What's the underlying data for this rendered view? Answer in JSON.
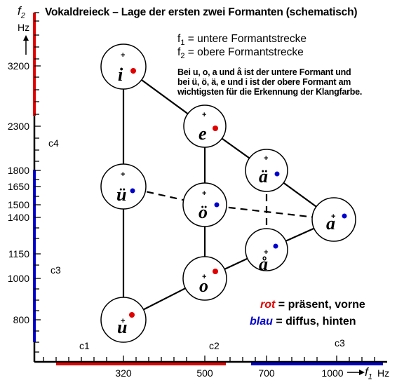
{
  "title": "Vokaldreieck – Lage der ersten zwei Formanten (schematisch)",
  "y_axis": {
    "symbol": "f",
    "subscript": "2",
    "unit": "Hz",
    "arrow": "↑",
    "ticks": [
      "3200",
      "2300",
      "1800",
      "1650",
      "1500",
      "1400",
      "1150",
      "1000",
      "800"
    ],
    "notes": [
      "c4",
      "c3"
    ]
  },
  "x_axis": {
    "symbol": "f",
    "subscript": "1",
    "unit": "Hz",
    "arrow": "—→",
    "ticks": [
      "320",
      "500",
      "700",
      "1000"
    ],
    "notes": [
      "c1",
      "c2",
      "c3"
    ]
  },
  "definitions": [
    {
      "symbol": "f1",
      "text": " = untere Formantstrecke"
    },
    {
      "symbol": "f2",
      "text": " =  obere Formantstrecke"
    }
  ],
  "paragraph": [
    "Bei u, o, a und å ist der untere Formant und",
    "bei ü, ö, ä, e und i ist der obere Formant am",
    "wichtigsten für die Erkennung der Klangfarbe."
  ],
  "vowels": [
    {
      "id": "i",
      "label": "i",
      "dot": "rot"
    },
    {
      "id": "e",
      "label": "e",
      "dot": "rot"
    },
    {
      "id": "ae",
      "label": "ä",
      "dot": "blau"
    },
    {
      "id": "a",
      "label": "a",
      "dot": "blau"
    },
    {
      "id": "aa",
      "label": "å",
      "dot": "blau"
    },
    {
      "id": "o",
      "label": "o",
      "dot": "rot"
    },
    {
      "id": "u",
      "label": "u",
      "dot": "rot"
    },
    {
      "id": "ue",
      "label": "ü",
      "dot": "blau"
    },
    {
      "id": "oe",
      "label": "ö",
      "dot": "blau"
    }
  ],
  "legend": [
    {
      "key": "rot",
      "text": " = präsent, vorne"
    },
    {
      "key": "blau",
      "text": " = diffus, hinten"
    }
  ],
  "colors": {
    "red": "#e00000",
    "blue": "#0000cc",
    "line": "#000000"
  }
}
